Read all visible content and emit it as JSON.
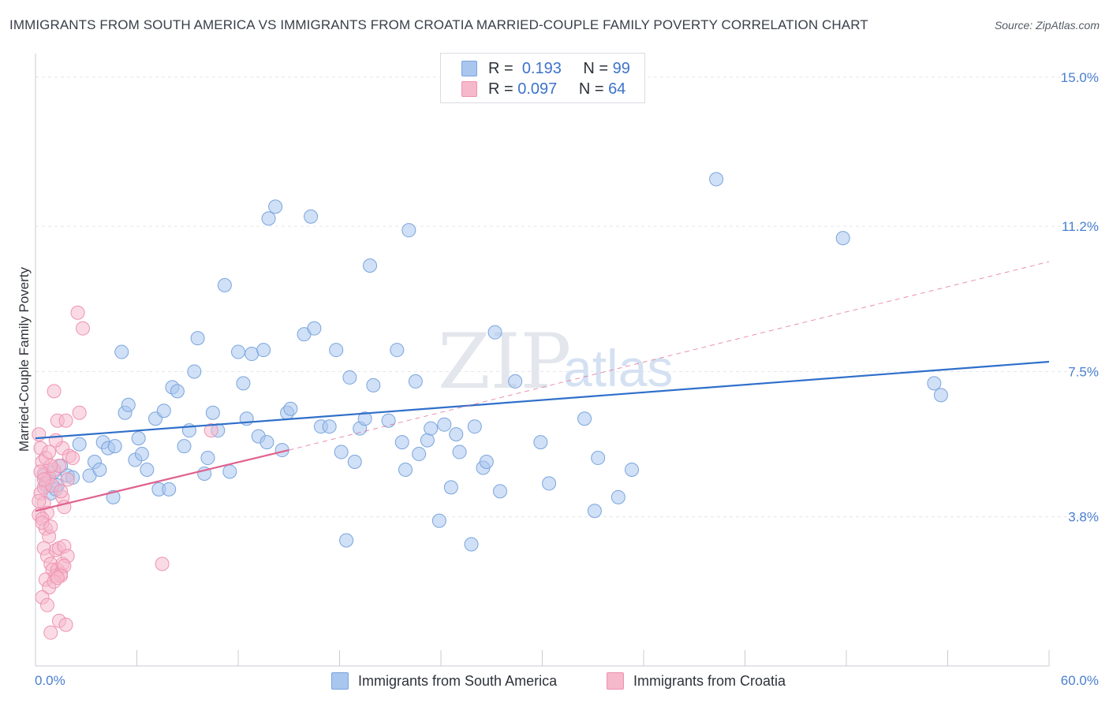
{
  "header": {
    "title": "IMMIGRANTS FROM SOUTH AMERICA VS IMMIGRANTS FROM CROATIA MARRIED-COUPLE FAMILY POVERTY CORRELATION CHART",
    "source": "Source: ZipAtlas.com"
  },
  "legend": {
    "r_label": "R =",
    "n_label": "N =",
    "series1": {
      "r": "0.193",
      "n": "99"
    },
    "series2": {
      "r": "0.097",
      "n": "64"
    }
  },
  "watermark": {
    "zip": "ZIP",
    "atlas": "atlas"
  },
  "colors": {
    "blue_fill": "#a9c6ee",
    "blue_stroke": "#7aa5de",
    "blue_line": "#2f6fca",
    "pink_fill": "#f6b8cb",
    "pink_stroke": "#ee93b0",
    "pink_line": "#e0618f",
    "grid": "#e3e6ec",
    "tick_text": "#4a7fd0"
  },
  "chart_data": {
    "type": "scatter",
    "title": "IMMIGRANTS FROM SOUTH AMERICA VS IMMIGRANTS FROM CROATIA MARRIED-COUPLE FAMILY POVERTY CORRELATION CHART",
    "xlabel": "",
    "ylabel": "Married-Couple Family Poverty",
    "xlim": [
      0,
      60
    ],
    "ylim": [
      0,
      15.4
    ],
    "x_tick_labels": [
      "0.0%",
      "60.0%"
    ],
    "y_ticks": [
      3.8,
      7.5,
      11.2,
      15.0
    ],
    "y_tick_labels": [
      "3.8%",
      "7.5%",
      "11.2%",
      "15.0%"
    ],
    "grid": true,
    "series": [
      {
        "name": "Immigrants from South America",
        "r": 0.193,
        "n": 99,
        "trend": {
          "x": [
            0,
            60
          ],
          "y": [
            5.8,
            7.75
          ],
          "style": "solid"
        },
        "points": [
          [
            1.1,
            4.95
          ],
          [
            1.3,
            4.6
          ],
          [
            1.5,
            5.1
          ],
          [
            1.9,
            4.85
          ],
          [
            2.2,
            4.8
          ],
          [
            2.6,
            5.65
          ],
          [
            3.2,
            4.85
          ],
          [
            3.5,
            5.2
          ],
          [
            4.0,
            5.7
          ],
          [
            3.8,
            5.0
          ],
          [
            4.3,
            5.55
          ],
          [
            4.7,
            5.6
          ],
          [
            4.6,
            4.3
          ],
          [
            5.1,
            8.0
          ],
          [
            5.3,
            6.45
          ],
          [
            5.5,
            6.65
          ],
          [
            5.9,
            5.25
          ],
          [
            6.1,
            5.8
          ],
          [
            6.6,
            5.0
          ],
          [
            6.3,
            5.4
          ],
          [
            7.1,
            6.3
          ],
          [
            7.3,
            4.5
          ],
          [
            7.6,
            6.5
          ],
          [
            7.9,
            4.5
          ],
          [
            8.1,
            7.1
          ],
          [
            8.4,
            7.0
          ],
          [
            8.8,
            5.6
          ],
          [
            9.1,
            6.0
          ],
          [
            9.4,
            7.5
          ],
          [
            9.6,
            8.35
          ],
          [
            10.0,
            4.9
          ],
          [
            10.2,
            5.3
          ],
          [
            10.5,
            6.45
          ],
          [
            10.8,
            6.0
          ],
          [
            11.2,
            9.7
          ],
          [
            11.5,
            4.95
          ],
          [
            12.0,
            8.0
          ],
          [
            12.3,
            7.2
          ],
          [
            12.5,
            6.3
          ],
          [
            12.8,
            7.95
          ],
          [
            13.2,
            5.85
          ],
          [
            13.5,
            8.05
          ],
          [
            13.7,
            5.7
          ],
          [
            13.8,
            11.4
          ],
          [
            14.2,
            11.7
          ],
          [
            14.6,
            5.5
          ],
          [
            14.9,
            6.45
          ],
          [
            15.1,
            6.55
          ],
          [
            15.9,
            8.45
          ],
          [
            16.3,
            11.45
          ],
          [
            16.5,
            8.6
          ],
          [
            16.9,
            6.1
          ],
          [
            17.4,
            6.1
          ],
          [
            17.8,
            8.05
          ],
          [
            18.1,
            5.45
          ],
          [
            18.4,
            3.2
          ],
          [
            18.6,
            7.35
          ],
          [
            18.9,
            5.2
          ],
          [
            19.2,
            6.05
          ],
          [
            19.5,
            6.3
          ],
          [
            19.8,
            10.2
          ],
          [
            20.0,
            7.15
          ],
          [
            20.9,
            6.25
          ],
          [
            21.4,
            8.05
          ],
          [
            21.7,
            5.7
          ],
          [
            21.9,
            5.0
          ],
          [
            22.1,
            11.1
          ],
          [
            22.5,
            7.25
          ],
          [
            22.7,
            5.4
          ],
          [
            23.2,
            5.75
          ],
          [
            23.4,
            6.05
          ],
          [
            23.9,
            3.7
          ],
          [
            24.2,
            6.15
          ],
          [
            24.6,
            4.55
          ],
          [
            24.9,
            5.9
          ],
          [
            25.1,
            5.45
          ],
          [
            25.8,
            3.1
          ],
          [
            26.0,
            6.1
          ],
          [
            26.5,
            5.05
          ],
          [
            26.7,
            5.2
          ],
          [
            27.2,
            8.5
          ],
          [
            27.5,
            4.45
          ],
          [
            28.4,
            7.25
          ],
          [
            29.9,
            5.7
          ],
          [
            30.4,
            4.65
          ],
          [
            32.5,
            6.3
          ],
          [
            33.1,
            3.95
          ],
          [
            33.3,
            5.3
          ],
          [
            34.5,
            4.3
          ],
          [
            35.3,
            5.0
          ],
          [
            40.3,
            12.4
          ],
          [
            47.8,
            10.9
          ],
          [
            53.2,
            7.2
          ],
          [
            53.6,
            6.9
          ],
          [
            0.6,
            4.6
          ],
          [
            0.9,
            4.4
          ],
          [
            0.7,
            4.75
          ],
          [
            1.2,
            4.5
          ],
          [
            0.5,
            4.85
          ]
        ]
      },
      {
        "name": "Immigrants from Croatia",
        "r": 0.097,
        "n": 64,
        "trend": {
          "x": [
            0,
            15
          ],
          "y": [
            3.95,
            5.5
          ],
          "style": "solid"
        },
        "trend_extension": {
          "x": [
            15,
            60
          ],
          "y": [
            5.5,
            10.3
          ],
          "style": "dashed"
        },
        "points": [
          [
            0.2,
            5.9
          ],
          [
            0.3,
            5.55
          ],
          [
            0.4,
            5.2
          ],
          [
            0.5,
            4.9
          ],
          [
            0.6,
            4.65
          ],
          [
            0.3,
            4.4
          ],
          [
            0.5,
            4.15
          ],
          [
            0.7,
            3.9
          ],
          [
            0.2,
            3.85
          ],
          [
            0.4,
            3.75
          ],
          [
            0.6,
            3.5
          ],
          [
            0.8,
            3.3
          ],
          [
            0.5,
            3.0
          ],
          [
            0.7,
            2.8
          ],
          [
            0.9,
            2.6
          ],
          [
            1.0,
            2.45
          ],
          [
            0.6,
            2.2
          ],
          [
            0.8,
            2.0
          ],
          [
            0.4,
            1.75
          ],
          [
            0.7,
            1.55
          ],
          [
            0.9,
            0.85
          ],
          [
            1.4,
            1.15
          ],
          [
            1.8,
            1.05
          ],
          [
            1.2,
            2.3
          ],
          [
            1.3,
            2.45
          ],
          [
            1.5,
            2.35
          ],
          [
            1.6,
            2.6
          ],
          [
            1.2,
            2.95
          ],
          [
            1.4,
            3.0
          ],
          [
            1.7,
            3.05
          ],
          [
            1.9,
            2.8
          ],
          [
            1.7,
            2.55
          ],
          [
            1.5,
            2.3
          ],
          [
            1.1,
            5.0
          ],
          [
            1.4,
            5.1
          ],
          [
            1.6,
            5.55
          ],
          [
            1.2,
            5.75
          ],
          [
            1.3,
            6.25
          ],
          [
            1.8,
            6.25
          ],
          [
            1.6,
            4.3
          ],
          [
            1.9,
            4.75
          ],
          [
            0.5,
            4.55
          ],
          [
            0.8,
            4.8
          ],
          [
            1.0,
            4.6
          ],
          [
            1.1,
            7.0
          ],
          [
            2.5,
            9.0
          ],
          [
            2.8,
            8.6
          ],
          [
            2.6,
            6.45
          ],
          [
            2.0,
            5.35
          ],
          [
            10.4,
            6.0
          ],
          [
            7.5,
            2.6
          ],
          [
            0.9,
            5.1
          ],
          [
            0.3,
            4.95
          ],
          [
            0.6,
            5.3
          ],
          [
            0.4,
            3.65
          ],
          [
            0.2,
            4.2
          ],
          [
            1.5,
            4.45
          ],
          [
            0.9,
            3.55
          ],
          [
            1.1,
            2.15
          ],
          [
            1.3,
            2.25
          ],
          [
            2.2,
            5.3
          ],
          [
            1.7,
            4.05
          ],
          [
            0.8,
            5.45
          ],
          [
            0.5,
            4.75
          ]
        ]
      }
    ]
  },
  "bottom_legend": {
    "series1_label": "Immigrants from South America",
    "series2_label": "Immigrants from Croatia"
  }
}
